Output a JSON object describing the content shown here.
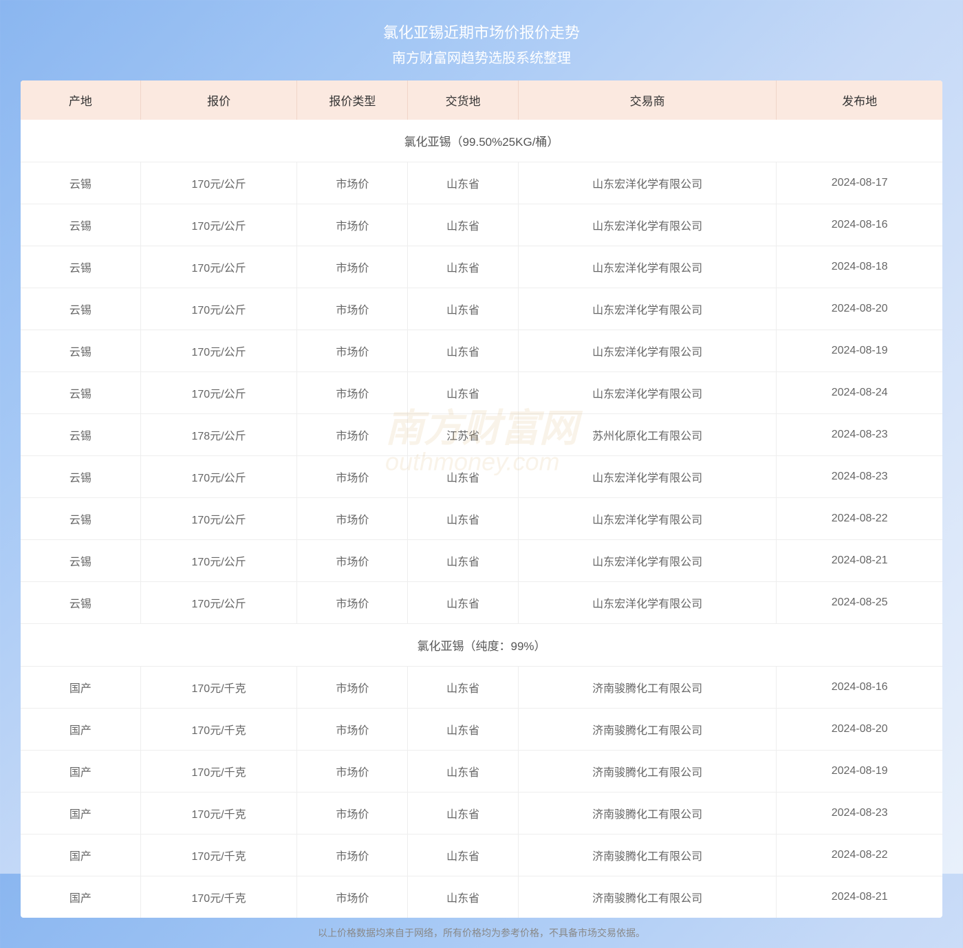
{
  "header": {
    "title": "氯化亚锡近期市场价报价走势",
    "subtitle": "南方财富网趋势选股系统整理"
  },
  "columns": [
    "产地",
    "报价",
    "报价类型",
    "交货地",
    "交易商",
    "发布地"
  ],
  "sections": [
    {
      "title": "氯化亚锡（99.50%25KG/桶）",
      "rows": [
        {
          "origin": "云锡",
          "price": "170元/公斤",
          "type": "市场价",
          "delivery": "山东省",
          "dealer": "山东宏洋化学有限公司",
          "date": "2024-08-17"
        },
        {
          "origin": "云锡",
          "price": "170元/公斤",
          "type": "市场价",
          "delivery": "山东省",
          "dealer": "山东宏洋化学有限公司",
          "date": "2024-08-16"
        },
        {
          "origin": "云锡",
          "price": "170元/公斤",
          "type": "市场价",
          "delivery": "山东省",
          "dealer": "山东宏洋化学有限公司",
          "date": "2024-08-18"
        },
        {
          "origin": "云锡",
          "price": "170元/公斤",
          "type": "市场价",
          "delivery": "山东省",
          "dealer": "山东宏洋化学有限公司",
          "date": "2024-08-20"
        },
        {
          "origin": "云锡",
          "price": "170元/公斤",
          "type": "市场价",
          "delivery": "山东省",
          "dealer": "山东宏洋化学有限公司",
          "date": "2024-08-19"
        },
        {
          "origin": "云锡",
          "price": "170元/公斤",
          "type": "市场价",
          "delivery": "山东省",
          "dealer": "山东宏洋化学有限公司",
          "date": "2024-08-24"
        },
        {
          "origin": "云锡",
          "price": "178元/公斤",
          "type": "市场价",
          "delivery": "江苏省",
          "dealer": "苏州化原化工有限公司",
          "date": "2024-08-23"
        },
        {
          "origin": "云锡",
          "price": "170元/公斤",
          "type": "市场价",
          "delivery": "山东省",
          "dealer": "山东宏洋化学有限公司",
          "date": "2024-08-23"
        },
        {
          "origin": "云锡",
          "price": "170元/公斤",
          "type": "市场价",
          "delivery": "山东省",
          "dealer": "山东宏洋化学有限公司",
          "date": "2024-08-22"
        },
        {
          "origin": "云锡",
          "price": "170元/公斤",
          "type": "市场价",
          "delivery": "山东省",
          "dealer": "山东宏洋化学有限公司",
          "date": "2024-08-21"
        },
        {
          "origin": "云锡",
          "price": "170元/公斤",
          "type": "市场价",
          "delivery": "山东省",
          "dealer": "山东宏洋化学有限公司",
          "date": "2024-08-25"
        }
      ]
    },
    {
      "title": "氯化亚锡（纯度：99%）",
      "rows": [
        {
          "origin": "国产",
          "price": "170元/千克",
          "type": "市场价",
          "delivery": "山东省",
          "dealer": "济南骏腾化工有限公司",
          "date": "2024-08-16"
        },
        {
          "origin": "国产",
          "price": "170元/千克",
          "type": "市场价",
          "delivery": "山东省",
          "dealer": "济南骏腾化工有限公司",
          "date": "2024-08-20"
        },
        {
          "origin": "国产",
          "price": "170元/千克",
          "type": "市场价",
          "delivery": "山东省",
          "dealer": "济南骏腾化工有限公司",
          "date": "2024-08-19"
        },
        {
          "origin": "国产",
          "price": "170元/千克",
          "type": "市场价",
          "delivery": "山东省",
          "dealer": "济南骏腾化工有限公司",
          "date": "2024-08-23"
        },
        {
          "origin": "国产",
          "price": "170元/千克",
          "type": "市场价",
          "delivery": "山东省",
          "dealer": "济南骏腾化工有限公司",
          "date": "2024-08-22"
        },
        {
          "origin": "国产",
          "price": "170元/千克",
          "type": "市场价",
          "delivery": "山东省",
          "dealer": "济南骏腾化工有限公司",
          "date": "2024-08-21"
        }
      ]
    }
  ],
  "footer": "以上价格数据均来自于网络，所有价格均为参考价格，不具备市场交易依据。",
  "watermark": {
    "main": "南方财富网",
    "sub": "outhmoney.com"
  },
  "styling": {
    "header_bg_color": "#fbe9e0",
    "header_text_color": "#333333",
    "cell_text_color": "#666666",
    "border_color": "#eeeeee",
    "background_gradient_start": "#8ab6f0",
    "background_gradient_end": "#e8f0fb",
    "title_color": "#ffffff",
    "footer_color": "#888888",
    "watermark_color": "#d4a050",
    "watermark_opacity": 0.12,
    "title_fontsize": 22,
    "header_fontsize": 17,
    "cell_fontsize": 16,
    "footer_fontsize": 14
  }
}
